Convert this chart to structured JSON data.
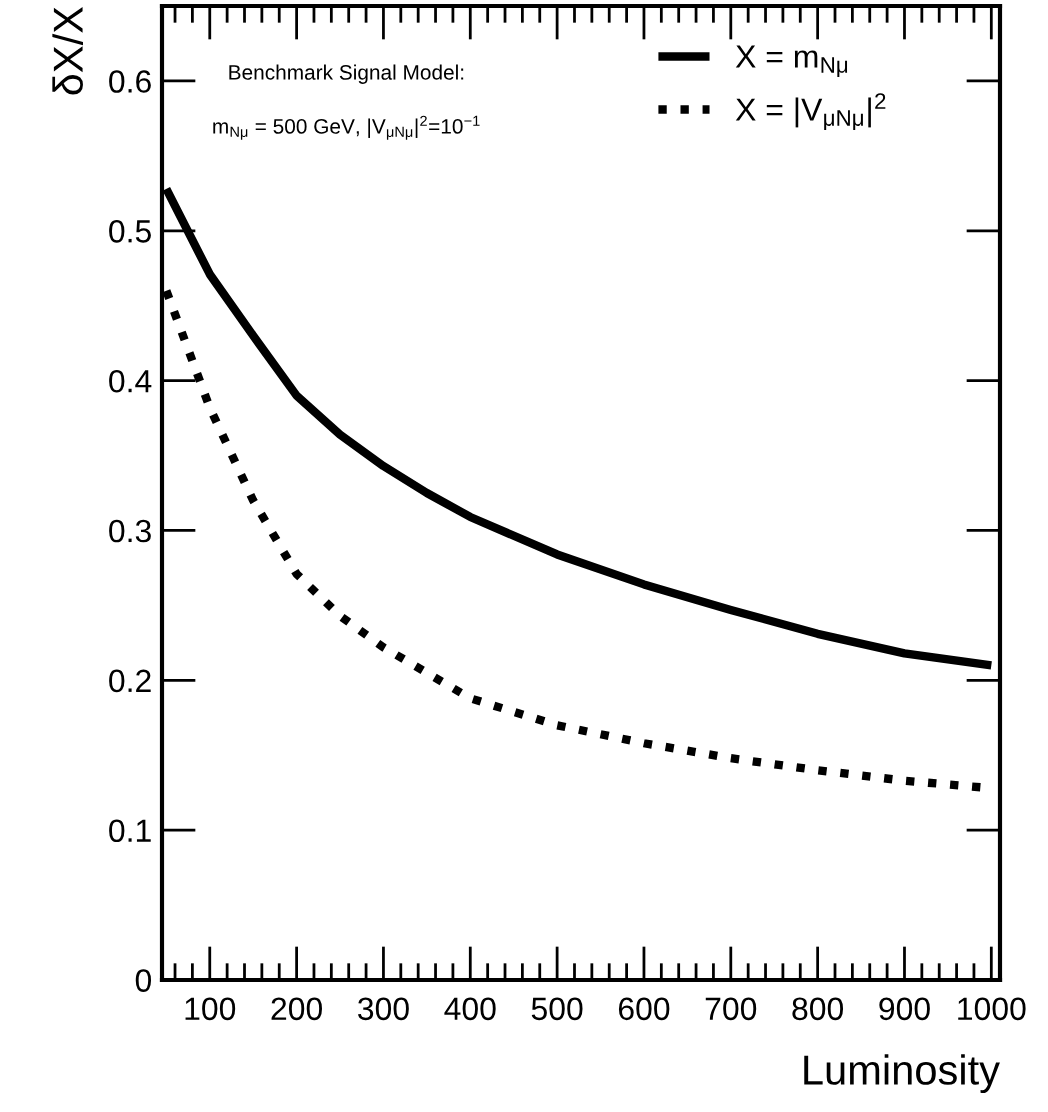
{
  "chart_data": {
    "type": "line",
    "xlabel": "Luminosity",
    "ylabel": "δX/X",
    "x": [
      50,
      100,
      150,
      200,
      250,
      300,
      350,
      400,
      500,
      600,
      700,
      800,
      900,
      1000
    ],
    "series": [
      {
        "name": "X = m$_{Nμ}$",
        "color": "#000000",
        "line_style": "solid",
        "values": [
          0.528,
          0.471,
          0.43,
          0.39,
          0.364,
          0.343,
          0.325,
          0.309,
          0.284,
          0.264,
          0.247,
          0.231,
          0.218,
          0.21
        ]
      },
      {
        "name": "X = |V$_{μNμ}$|$^{2}$",
        "color": "#000000",
        "line_style": "dotted",
        "values": [
          0.46,
          0.382,
          0.32,
          0.271,
          0.243,
          0.222,
          0.205,
          0.188,
          0.17,
          0.158,
          0.148,
          0.14,
          0.133,
          0.128
        ]
      }
    ],
    "annotations": [
      "Benchmark Signal Model:",
      "m$_{Nμ}$ = 500 GeV, |V$_{μNμ}$|$^{2}$=10$^{−1}$"
    ],
    "xlim": [
      45,
      1010
    ],
    "ylim": [
      0,
      0.65
    ],
    "xticks": [
      100,
      200,
      300,
      400,
      500,
      600,
      700,
      800,
      900,
      1000
    ],
    "yticks": [
      0,
      0.1,
      0.2,
      0.3,
      0.4,
      0.5,
      0.6
    ],
    "grid": false,
    "legend": "top right",
    "marker": "none"
  }
}
